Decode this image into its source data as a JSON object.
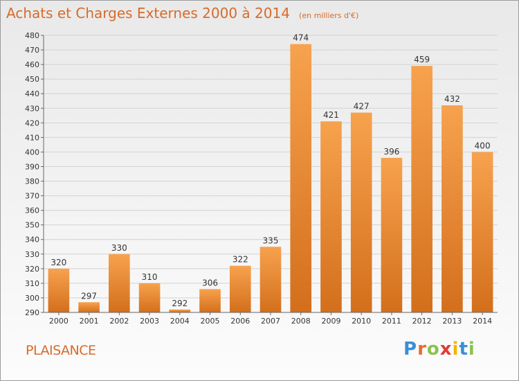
{
  "header": {
    "title": "Achats et Charges Externes 2000 à 2014",
    "unit": "(en milliers d'€)"
  },
  "footer": {
    "town": "PLAISANCE",
    "logo": [
      {
        "ch": "P",
        "color": "#3a8fd6"
      },
      {
        "ch": "r",
        "color": "#e96b2c"
      },
      {
        "ch": "o",
        "color": "#8bc34a"
      },
      {
        "ch": "x",
        "color": "#e23b3b"
      },
      {
        "ch": "i",
        "color": "#f4b400"
      },
      {
        "ch": "t",
        "color": "#3a8fd6"
      },
      {
        "ch": "i",
        "color": "#8bc34a"
      }
    ]
  },
  "colors": {
    "bar_top": "#f7a24e",
    "bar_bottom": "#d36f1c",
    "title": "#d86a2a"
  },
  "chart_data": {
    "type": "bar",
    "title": "Achats et Charges Externes 2000 à 2014",
    "subtitle": "(en milliers d'€)",
    "categories": [
      "2000",
      "2001",
      "2002",
      "2003",
      "2004",
      "2005",
      "2006",
      "2007",
      "2008",
      "2009",
      "2010",
      "2011",
      "2012",
      "2013",
      "2014"
    ],
    "values": [
      320,
      297,
      330,
      310,
      292,
      306,
      322,
      335,
      474,
      421,
      427,
      396,
      459,
      432,
      400
    ],
    "ylim": [
      290,
      480
    ],
    "ytick_step": 10,
    "grid": true,
    "legend": "none"
  }
}
